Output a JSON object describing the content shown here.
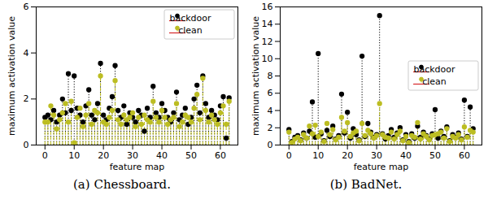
{
  "chart_data": [
    {
      "type": "stem",
      "title": "(a) Chessboard.",
      "x_label": "feature map",
      "y_label": "maximum activation value",
      "x": [
        0,
        1,
        2,
        3,
        4,
        5,
        6,
        7,
        8,
        9,
        10,
        11,
        12,
        13,
        14,
        15,
        16,
        17,
        18,
        19,
        20,
        21,
        22,
        23,
        24,
        25,
        26,
        27,
        28,
        29,
        30,
        31,
        32,
        33,
        34,
        35,
        36,
        37,
        38,
        39,
        40,
        41,
        42,
        43,
        44,
        45,
        46,
        47,
        48,
        49,
        50,
        51,
        52,
        53,
        54,
        55,
        56,
        57,
        58,
        59,
        60,
        61,
        62,
        63
      ],
      "xlim": [
        -3,
        66
      ],
      "xticks": [
        0,
        10,
        20,
        30,
        40,
        50,
        60
      ],
      "ylim": [
        0,
        6
      ],
      "yticks": [
        0,
        2,
        4,
        6
      ],
      "legend": "upper right",
      "series": [
        {
          "name": "backdoor",
          "color": "#000000",
          "marker": "circle",
          "line_style": "dotted",
          "values": [
            1.2,
            1.3,
            1.1,
            1.5,
            1.0,
            1.3,
            2.0,
            1.4,
            3.1,
            1.5,
            3.0,
            1.6,
            1.3,
            1.0,
            1.7,
            2.4,
            1.3,
            1.1,
            1.8,
            3.55,
            1.3,
            1.1,
            1.6,
            2.1,
            3.45,
            1.5,
            1.2,
            1.7,
            0.9,
            1.4,
            1.2,
            1.0,
            1.5,
            1.3,
            0.6,
            1.6,
            1.2,
            2.55,
            1.4,
            1.2,
            1.8,
            1.5,
            1.2,
            1.0,
            1.4,
            2.3,
            1.1,
            1.3,
            1.6,
            0.9,
            1.2,
            2.0,
            2.6,
            1.4,
            3.0,
            1.8,
            1.2,
            1.5,
            1.3,
            1.1,
            1.7,
            2.1,
            0.3,
            2.05
          ]
        },
        {
          "name": "clean",
          "color": "#bcbd22",
          "marker": "circle",
          "line_style": "dashed",
          "values": [
            1.0,
            1.0,
            1.7,
            1.3,
            0.7,
            1.1,
            1.4,
            1.8,
            1.0,
            1.9,
            0.1,
            1.2,
            1.6,
            0.8,
            1.3,
            1.8,
            0.9,
            1.5,
            1.4,
            3.0,
            1.0,
            0.9,
            1.2,
            1.5,
            2.8,
            1.1,
            0.9,
            1.3,
            1.1,
            1.2,
            1.4,
            0.8,
            1.2,
            0.9,
            1.3,
            1.1,
            1.0,
            1.9,
            1.2,
            1.0,
            1.5,
            1.2,
            0.9,
            1.1,
            1.2,
            1.8,
            0.8,
            1.0,
            1.3,
            1.2,
            1.0,
            1.6,
            2.2,
            1.1,
            2.9,
            1.5,
            1.0,
            1.3,
            1.1,
            0.9,
            1.4,
            1.7,
            0.9,
            1.9
          ]
        }
      ]
    },
    {
      "type": "stem",
      "title": "(b) BadNet.",
      "x_label": "feature map",
      "y_label": "maximum activation value",
      "x": [
        0,
        1,
        2,
        3,
        4,
        5,
        6,
        7,
        8,
        9,
        10,
        11,
        12,
        13,
        14,
        15,
        16,
        17,
        18,
        19,
        20,
        21,
        22,
        23,
        24,
        25,
        26,
        27,
        28,
        29,
        30,
        31,
        32,
        33,
        34,
        35,
        36,
        37,
        38,
        39,
        40,
        41,
        42,
        43,
        44,
        45,
        46,
        47,
        48,
        49,
        50,
        51,
        52,
        53,
        54,
        55,
        56,
        57,
        58,
        59,
        60,
        61,
        62,
        63
      ],
      "xlim": [
        -3,
        66
      ],
      "xticks": [
        0,
        10,
        20,
        30,
        40,
        50,
        60
      ],
      "ylim": [
        0,
        16
      ],
      "yticks": [
        0,
        2,
        4,
        6,
        8,
        10,
        12,
        14,
        16
      ],
      "legend": "center right",
      "series": [
        {
          "name": "backdoor",
          "color": "#000000",
          "marker": "circle",
          "line_style": "dotted",
          "values": [
            1.8,
            0.4,
            0.9,
            1.1,
            0.6,
            1.4,
            0.8,
            1.6,
            5.0,
            0.9,
            10.6,
            1.3,
            0.5,
            1.7,
            1.0,
            2.2,
            0.7,
            1.1,
            5.9,
            1.4,
            3.8,
            0.8,
            1.9,
            1.2,
            0.6,
            10.3,
            1.0,
            2.5,
            1.5,
            0.9,
            1.2,
            15.0,
            1.3,
            0.7,
            1.1,
            1.8,
            0.9,
            1.4,
            2.0,
            0.6,
            1.2,
            0.4,
            1.3,
            0.8,
            2.2,
            0.9,
            1.5,
            1.1,
            0.7,
            1.3,
            4.1,
            0.8,
            1.6,
            1.0,
            2.1,
            0.5,
            1.2,
            0.9,
            1.4,
            0.7,
            5.2,
            1.0,
            4.4,
            1.9
          ]
        },
        {
          "name": "clean",
          "color": "#bcbd22",
          "marker": "circle",
          "line_style": "dashed",
          "values": [
            1.5,
            0.3,
            0.7,
            0.9,
            0.5,
            1.2,
            0.8,
            2.2,
            1.3,
            2.3,
            1.0,
            1.5,
            0.4,
            2.5,
            1.2,
            1.8,
            0.6,
            0.9,
            3.2,
            1.6,
            2.6,
            1.0,
            1.4,
            1.6,
            0.5,
            2.5,
            1.1,
            1.7,
            1.3,
            0.8,
            1.1,
            4.8,
            1.2,
            0.9,
            0.8,
            1.5,
            0.7,
            1.2,
            1.6,
            0.5,
            1.0,
            0.3,
            1.1,
            0.9,
            2.6,
            0.7,
            1.3,
            1.0,
            0.6,
            1.1,
            1.2,
            1.3,
            1.5,
            0.8,
            1.9,
            0.4,
            1.0,
            0.8,
            1.2,
            0.6,
            2.1,
            0.9,
            1.7,
            1.5
          ]
        }
      ]
    }
  ]
}
